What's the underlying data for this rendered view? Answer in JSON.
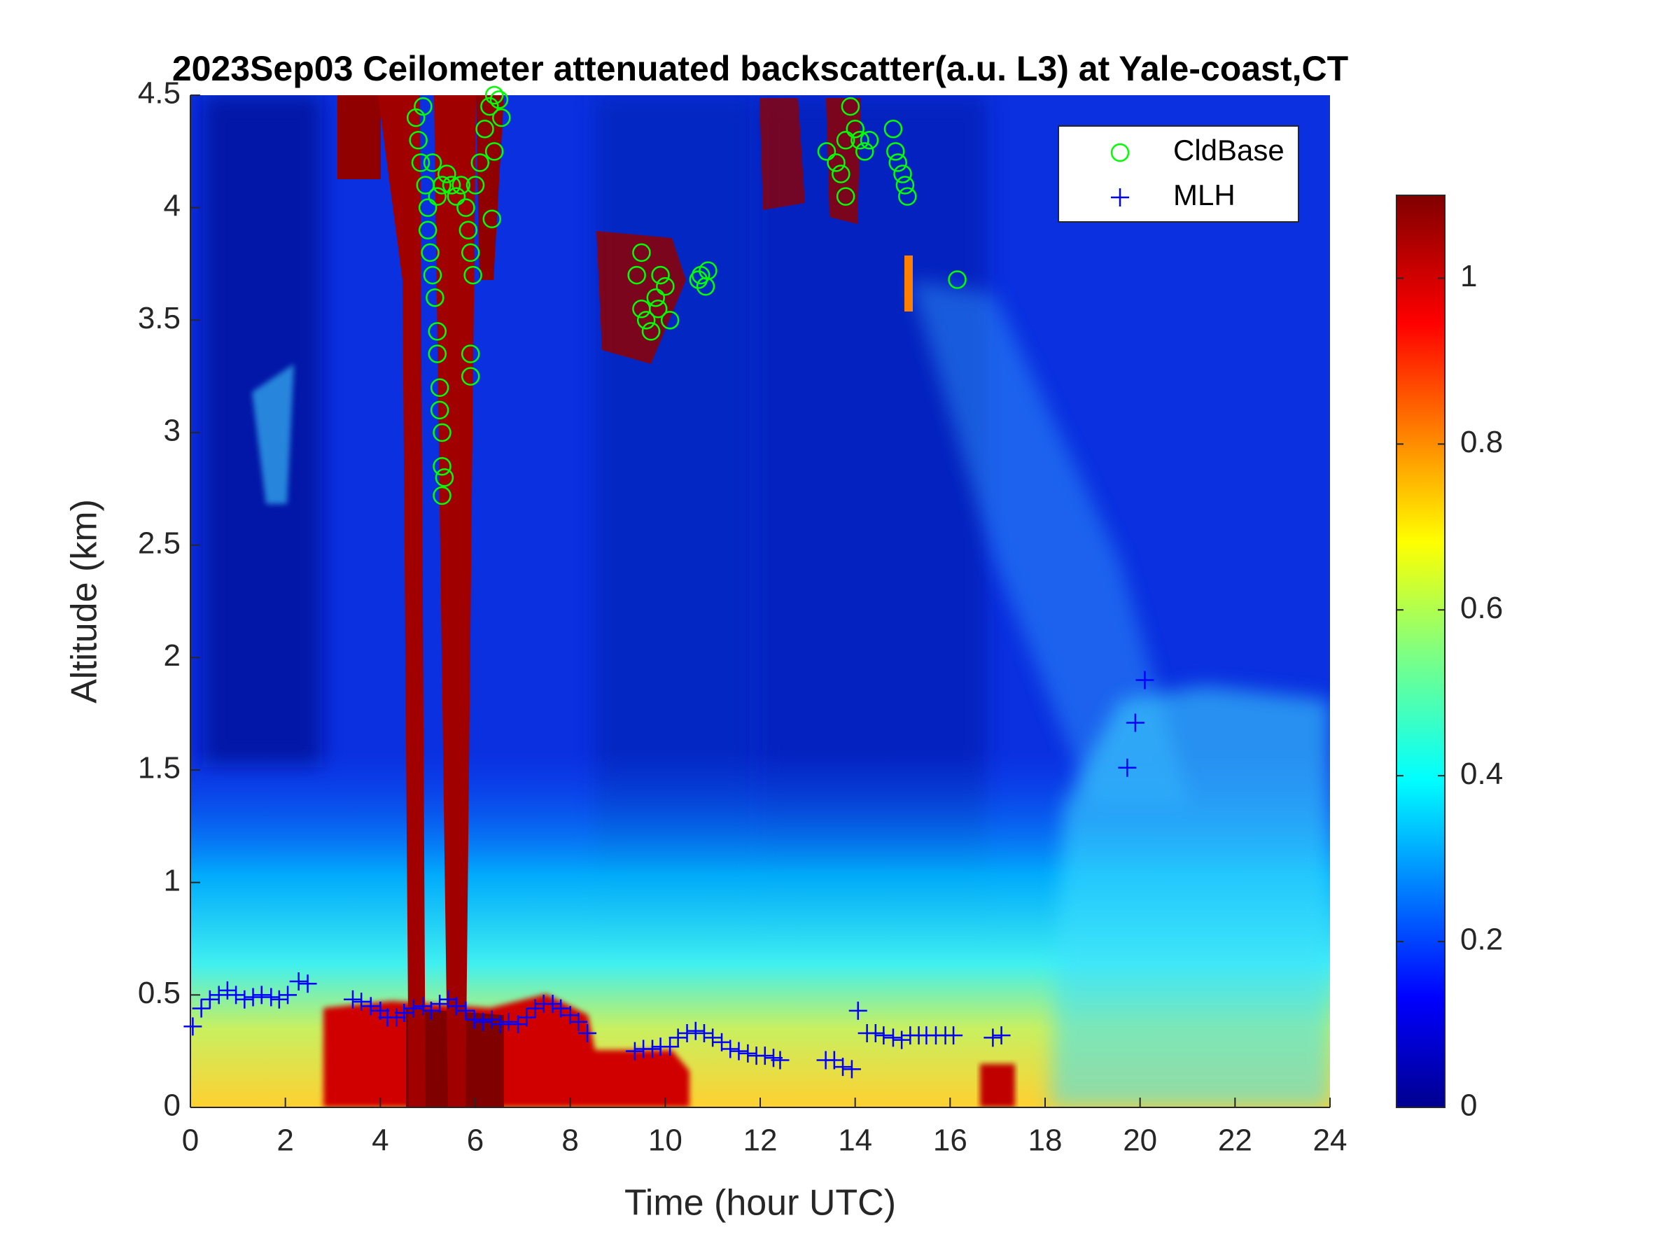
{
  "chart_data": {
    "type": "scatter",
    "title": "2023Sep03 Ceilometer attenuated backscatter(a.u. L3) at Yale-coast,CT",
    "x_label": "Time (hour UTC)",
    "y_label": "Altitude (km)",
    "xlim": [
      0,
      24
    ],
    "xticks": [
      0,
      2,
      4,
      6,
      8,
      10,
      12,
      14,
      16,
      18,
      20,
      22,
      24
    ],
    "ylim": [
      0,
      4.5
    ],
    "yticks": [
      0,
      0.5,
      1,
      1.5,
      2,
      2.5,
      3,
      3.5,
      4,
      4.5
    ],
    "legend": "upper right",
    "colorbar": {
      "ylim": [
        0,
        1.1
      ],
      "yticks": [
        0,
        0.2,
        0.4,
        0.6,
        0.8,
        1
      ]
    },
    "series": [
      {
        "name": "CldBase",
        "color": "#00ff00",
        "marker": "o",
        "x": [
          4.75,
          4.8,
          4.85,
          4.9,
          4.95,
          5.0,
          5.0,
          5.05,
          5.1,
          5.15,
          5.2,
          5.2,
          5.25,
          5.25,
          5.3,
          5.3,
          5.35,
          5.3,
          5.1,
          5.2,
          5.3,
          5.4,
          5.5,
          5.6,
          5.7,
          5.8,
          5.85,
          5.9,
          5.95,
          5.9,
          5.9,
          6.0,
          6.1,
          6.2,
          6.3,
          6.4,
          6.5,
          6.55,
          6.35,
          6.4,
          9.4,
          9.5,
          9.5,
          9.6,
          9.7,
          9.8,
          9.9,
          9.85,
          10.0,
          10.1,
          10.75,
          10.85,
          10.9,
          10.7,
          13.4,
          13.6,
          13.8,
          13.9,
          14.0,
          14.1,
          14.2,
          14.3,
          13.7,
          13.8,
          14.8,
          14.85,
          14.9,
          15.0,
          15.05,
          15.1,
          16.15
        ],
        "values": [
          4.4,
          4.3,
          4.2,
          4.45,
          4.1,
          4.0,
          3.9,
          3.8,
          3.7,
          3.6,
          3.45,
          3.35,
          3.2,
          3.1,
          3.0,
          2.85,
          2.8,
          2.72,
          4.2,
          4.05,
          4.1,
          4.15,
          4.1,
          4.05,
          4.1,
          4.0,
          3.9,
          3.8,
          3.7,
          3.35,
          3.25,
          4.1,
          4.2,
          4.35,
          4.45,
          4.5,
          4.48,
          4.4,
          3.95,
          4.25,
          3.7,
          3.8,
          3.55,
          3.5,
          3.45,
          3.6,
          3.7,
          3.55,
          3.65,
          3.5,
          3.7,
          3.65,
          3.72,
          3.68,
          4.25,
          4.2,
          4.3,
          4.45,
          4.35,
          4.3,
          4.25,
          4.3,
          4.15,
          4.05,
          4.35,
          4.25,
          4.2,
          4.15,
          4.1,
          4.05,
          3.68
        ]
      },
      {
        "name": "MLH",
        "color": "#0000ff",
        "marker": "+",
        "x": [
          0.05,
          0.23,
          0.41,
          0.6,
          0.78,
          0.96,
          1.14,
          1.32,
          1.5,
          1.7,
          1.87,
          2.05,
          2.28,
          2.47,
          3.42,
          3.6,
          3.8,
          4.0,
          4.15,
          4.34,
          4.5,
          4.7,
          4.9,
          5.07,
          5.25,
          5.43,
          5.6,
          5.8,
          5.98,
          6.16,
          6.35,
          6.53,
          6.7,
          6.9,
          7.08,
          7.26,
          7.44,
          7.63,
          7.8,
          8.0,
          8.17,
          8.36,
          9.36,
          9.54,
          9.73,
          9.9,
          10.1,
          10.27,
          10.46,
          10.64,
          10.82,
          11.0,
          11.19,
          11.37,
          11.55,
          11.74,
          11.92,
          12.1,
          12.28,
          12.42,
          13.38,
          13.56,
          13.74,
          13.93,
          14.06,
          14.25,
          14.43,
          14.6,
          14.8,
          14.98,
          15.16,
          15.34,
          15.5,
          15.7,
          15.9,
          16.07,
          16.9,
          17.08,
          19.73,
          19.9,
          20.1
        ],
        "values": [
          0.36,
          0.44,
          0.48,
          0.5,
          0.52,
          0.5,
          0.48,
          0.49,
          0.5,
          0.49,
          0.48,
          0.5,
          0.56,
          0.55,
          0.48,
          0.47,
          0.45,
          0.43,
          0.4,
          0.4,
          0.42,
          0.44,
          0.45,
          0.43,
          0.46,
          0.48,
          0.45,
          0.43,
          0.39,
          0.38,
          0.39,
          0.37,
          0.38,
          0.37,
          0.4,
          0.44,
          0.46,
          0.46,
          0.44,
          0.41,
          0.38,
          0.33,
          0.25,
          0.26,
          0.26,
          0.27,
          0.27,
          0.31,
          0.33,
          0.34,
          0.33,
          0.31,
          0.29,
          0.26,
          0.25,
          0.24,
          0.23,
          0.23,
          0.22,
          0.21,
          0.21,
          0.21,
          0.18,
          0.17,
          0.43,
          0.33,
          0.33,
          0.32,
          0.31,
          0.3,
          0.32,
          0.32,
          0.32,
          0.32,
          0.32,
          0.32,
          0.31,
          0.32,
          1.51,
          1.71,
          1.9
        ]
      }
    ]
  }
}
